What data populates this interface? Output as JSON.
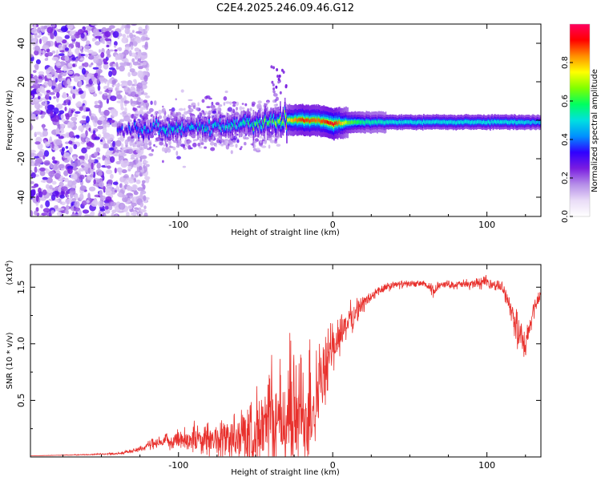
{
  "chart_data": [
    {
      "type": "heatmap",
      "title": "C2E4.2025.246.09.46.G12",
      "xlabel": "Height of straight line (km)",
      "ylabel": "Frequency (Hz)",
      "xlim": [
        -196,
        135
      ],
      "ylim": [
        -50,
        50
      ],
      "x_ticks": [
        -100,
        0,
        100
      ],
      "x_tick_labels": [
        "-100",
        "0",
        "100"
      ],
      "y_ticks": [
        -40,
        -20,
        0,
        20,
        40
      ],
      "y_tick_labels": [
        "-40",
        "-20",
        "0",
        "20",
        "40"
      ],
      "colorbar": {
        "label": "Normalized spectral amplitude",
        "range": [
          0.0,
          1.0
        ],
        "ticks": [
          0.0,
          0.2,
          0.4,
          0.6,
          0.8
        ],
        "tick_labels": [
          "0.0",
          "0.2",
          "0.4",
          "0.6",
          "0.8"
        ],
        "colormap": [
          "#ffffff",
          "#e9dcf7",
          "#b58de8",
          "#7a1de0",
          "#3000ff",
          "#0090ff",
          "#00e0e0",
          "#00ff60",
          "#80ff00",
          "#ffff00",
          "#ff9000",
          "#ff0000",
          "#ff0060"
        ]
      },
      "ridge": {
        "x": [
          -140,
          -120,
          -100,
          -80,
          -60,
          -40,
          -30,
          -20,
          -10,
          0,
          10,
          20,
          40,
          60,
          80,
          100,
          120,
          135
        ],
        "frequency": [
          -5,
          -5,
          -4,
          -3,
          -2,
          -1,
          0,
          0,
          0,
          -2,
          -1,
          -1,
          -1,
          -1,
          -1,
          -1,
          -1,
          -1
        ],
        "amplitude": [
          0.3,
          0.4,
          0.45,
          0.45,
          0.5,
          0.6,
          0.75,
          0.9,
          0.85,
          0.95,
          0.65,
          0.55,
          0.5,
          0.5,
          0.5,
          0.5,
          0.5,
          0.45
        ]
      },
      "noise_region_x": [
        -196,
        -130
      ],
      "side_band_x": [
        -130,
        -35
      ]
    },
    {
      "type": "line",
      "xlabel": "Height of straight line (km)",
      "ylabel": "SNR (10 * v/v)",
      "y_multiplier": "(x10^4)",
      "y_multiplier_base": "(x10",
      "y_multiplier_exp": "4",
      "xlim": [
        -196,
        135
      ],
      "ylim": [
        0,
        1.7
      ],
      "x_ticks": [
        -100,
        0,
        100
      ],
      "x_tick_labels": [
        "-100",
        "0",
        "100"
      ],
      "y_ticks": [
        0.5,
        1.0,
        1.5
      ],
      "y_tick_labels": [
        "0.5",
        "1.0",
        "1.5"
      ],
      "color": "#e8302c",
      "series": [
        {
          "name": "SNR",
          "x": [
            -196,
            -160,
            -140,
            -130,
            -120,
            -110,
            -100,
            -90,
            -80,
            -70,
            -60,
            -50,
            -40,
            -30,
            -20,
            -15,
            -10,
            -5,
            0,
            5,
            10,
            20,
            30,
            40,
            50,
            60,
            65,
            70,
            80,
            90,
            100,
            110,
            115,
            120,
            125,
            130,
            135
          ],
          "mean": [
            0.01,
            0.02,
            0.03,
            0.05,
            0.1,
            0.13,
            0.16,
            0.16,
            0.15,
            0.16,
            0.18,
            0.22,
            0.28,
            0.33,
            0.36,
            0.4,
            0.55,
            0.75,
            0.95,
            1.1,
            1.2,
            1.36,
            1.47,
            1.52,
            1.53,
            1.53,
            1.45,
            1.53,
            1.52,
            1.53,
            1.54,
            1.5,
            1.35,
            1.1,
            0.95,
            1.3,
            1.45
          ],
          "spread": [
            0.0,
            0.005,
            0.01,
            0.02,
            0.05,
            0.06,
            0.1,
            0.14,
            0.16,
            0.2,
            0.28,
            0.38,
            0.48,
            0.55,
            0.6,
            0.55,
            0.42,
            0.3,
            0.25,
            0.2,
            0.16,
            0.08,
            0.05,
            0.04,
            0.03,
            0.03,
            0.08,
            0.03,
            0.04,
            0.05,
            0.06,
            0.05,
            0.1,
            0.2,
            0.15,
            0.1,
            0.04
          ]
        }
      ]
    }
  ]
}
